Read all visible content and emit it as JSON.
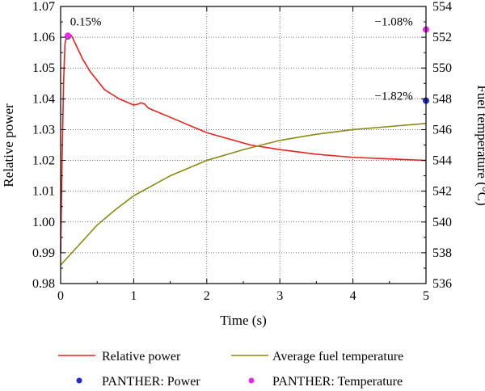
{
  "chart_data": {
    "type": "line",
    "xlabel": "Time (s)",
    "ylabel": "Relative power",
    "y2label": "Fuel temperature (°C)",
    "xlim": [
      0,
      5
    ],
    "ylim": [
      0.98,
      1.07
    ],
    "y2lim": [
      536,
      554
    ],
    "xticks": [
      "0",
      "1",
      "2",
      "3",
      "4",
      "5"
    ],
    "yticks": [
      "0.98",
      "0.99",
      "1.00",
      "1.01",
      "1.02",
      "1.03",
      "1.04",
      "1.05",
      "1.06",
      "1.07"
    ],
    "y2ticks": [
      "536",
      "538",
      "540",
      "542",
      "544",
      "546",
      "548",
      "550",
      "552",
      "554"
    ],
    "grid": true,
    "legend_position": "bottom",
    "series": [
      {
        "name": "Relative power",
        "axis": "left",
        "color": "#e8221e",
        "x": [
          0,
          0.02,
          0.04,
          0.06,
          0.08,
          0.1,
          0.12,
          0.15,
          0.2,
          0.3,
          0.4,
          0.5,
          0.6,
          0.7,
          0.8,
          0.9,
          1.0,
          1.05,
          1.1,
          1.15,
          1.2,
          1.3,
          1.5,
          1.7,
          2.0,
          2.3,
          2.6,
          3.0,
          3.5,
          4.0,
          4.5,
          5.0
        ],
        "y": [
          0.99,
          1.02,
          1.045,
          1.058,
          1.06,
          1.061,
          1.061,
          1.0605,
          1.058,
          1.053,
          1.049,
          1.046,
          1.043,
          1.0415,
          1.04,
          1.039,
          1.038,
          1.0382,
          1.0387,
          1.0383,
          1.037,
          1.036,
          1.034,
          1.032,
          1.029,
          1.027,
          1.025,
          1.0235,
          1.022,
          1.021,
          1.0205,
          1.02
        ]
      },
      {
        "name": "Average fuel temperature",
        "axis": "right",
        "color": "#8c8a14",
        "x": [
          0,
          0.25,
          0.5,
          0.75,
          1.0,
          1.5,
          2.0,
          2.5,
          3.0,
          3.5,
          4.0,
          4.5,
          5.0
        ],
        "y": [
          537.2,
          538.5,
          539.8,
          540.8,
          541.7,
          543.0,
          544.0,
          544.7,
          545.3,
          545.7,
          546.0,
          546.2,
          546.4
        ]
      }
    ],
    "reference_points": [
      {
        "name": "PANTHER: Power",
        "axis": "left",
        "color": "#1f2bd6",
        "points": [
          {
            "x": 0.1,
            "y": 1.0603
          },
          {
            "x": 5.0,
            "y": 1.0394
          }
        ]
      },
      {
        "name": "PANTHER: Temperature",
        "axis": "right",
        "color": "#e62ae6",
        "points": [
          {
            "x": 0.1,
            "y": 552.1
          },
          {
            "x": 5.0,
            "y": 552.5
          }
        ]
      }
    ],
    "annotations": [
      {
        "text": "0.15%",
        "x": 0.13,
        "y": 1.0638,
        "axis": "left",
        "anchor": "start"
      },
      {
        "text": "−1.08%",
        "x": 4.82,
        "y": 1.0638,
        "axis": "left",
        "anchor": "end"
      },
      {
        "text": "−1.82%",
        "x": 4.82,
        "y": 1.0397,
        "axis": "left",
        "anchor": "end"
      }
    ]
  }
}
